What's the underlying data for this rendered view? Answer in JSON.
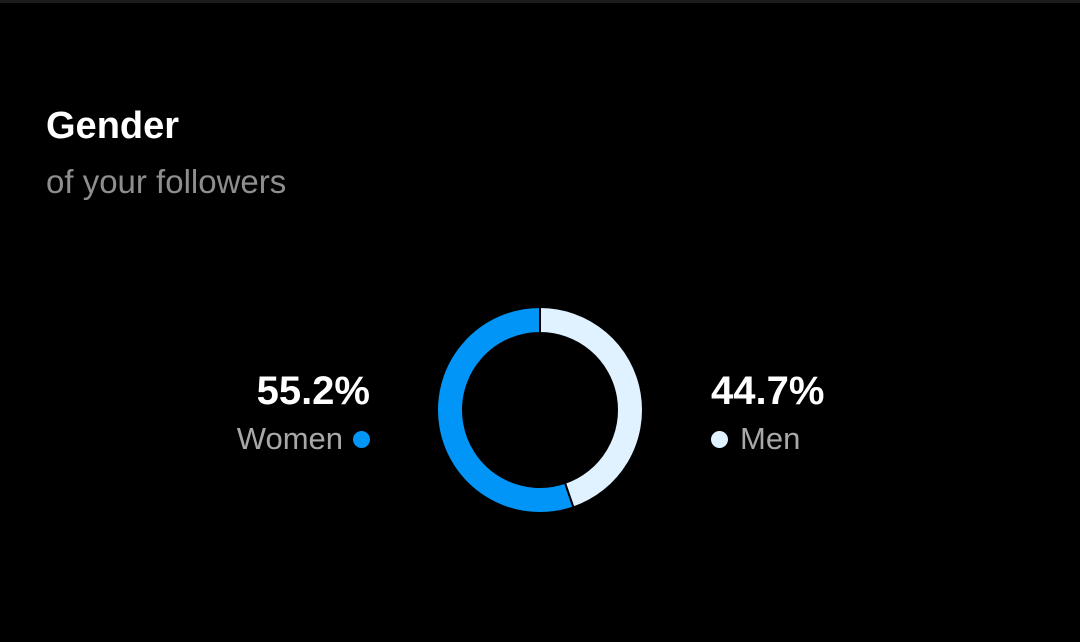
{
  "header": {
    "title": "Gender",
    "subtitle": "of your followers"
  },
  "chart_data": {
    "type": "pie",
    "style": "donut",
    "title": "Gender",
    "subtitle": "of your followers",
    "slices": [
      {
        "name": "Women",
        "value": 55.2,
        "label": "55.2%",
        "color": "#0095f6"
      },
      {
        "name": "Men",
        "value": 44.7,
        "label": "44.7%",
        "color": "#e0f1ff"
      }
    ],
    "legend": "sides"
  },
  "colors": {
    "background": "#000000",
    "text_primary": "#ffffff",
    "text_secondary": "#8e8e8e"
  }
}
